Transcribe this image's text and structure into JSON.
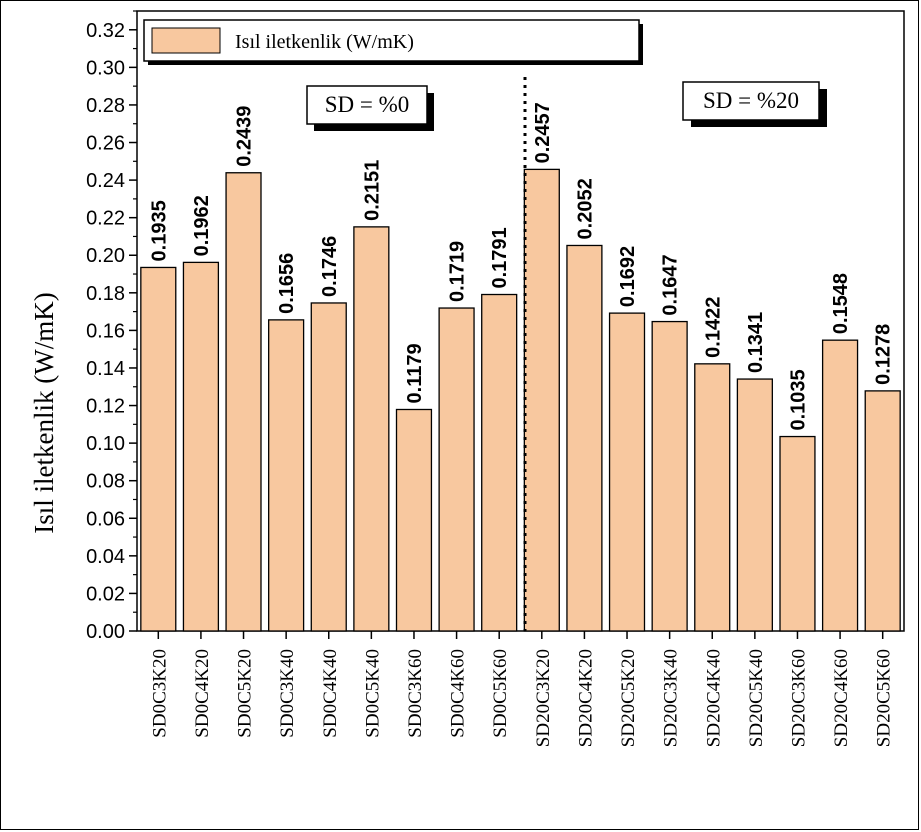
{
  "chart_data": {
    "type": "bar",
    "title": "",
    "ylabel": "Isıl iletkenlik (W/mK)",
    "xlabel": "",
    "ylim": [
      0,
      0.33
    ],
    "yticks": [
      "0.00",
      "0.02",
      "0.04",
      "0.06",
      "0.08",
      "0.10",
      "0.12",
      "0.14",
      "0.16",
      "0.18",
      "0.20",
      "0.22",
      "0.24",
      "0.26",
      "0.28",
      "0.30",
      "0.32"
    ],
    "categories": [
      "SD0C3K20",
      "SD0C4K20",
      "SD0C5K20",
      "SD0C3K40",
      "SD0C4K40",
      "SD0C5K40",
      "SD0C3K60",
      "SD0C4K60",
      "SD0C5K60",
      "SD20C3K20",
      "SD20C4K20",
      "SD20C5K20",
      "SD20C3K40",
      "SD20C4K40",
      "SD20C5K40",
      "SD20C3K60",
      "SD20C4K60",
      "SD20C5K60"
    ],
    "values": [
      0.1935,
      0.1962,
      0.2439,
      0.1656,
      0.1746,
      0.2151,
      0.1179,
      0.1719,
      0.1791,
      0.2457,
      0.2052,
      0.1692,
      0.1647,
      0.1422,
      0.1341,
      0.1035,
      0.1548,
      0.1278
    ],
    "value_labels": [
      "0.1935",
      "0.1962",
      "0.2439",
      "0.1656",
      "0.1746",
      "0.2151",
      "0.1179",
      "0.1719",
      "0.1791",
      "0.2457",
      "0.2052",
      "0.1692",
      "0.1647",
      "0.1422",
      "0.1341",
      "0.1035",
      "0.1548",
      "0.1278"
    ],
    "legend": {
      "label": "Isıl iletkenlik (W/mK)",
      "position": "top-left"
    },
    "groups": [
      {
        "label": "SD = %0"
      },
      {
        "label": "SD = %20"
      }
    ],
    "colors": {
      "bar_fill": "#f8c89f",
      "bar_stroke": "#000000"
    },
    "grid": false
  }
}
